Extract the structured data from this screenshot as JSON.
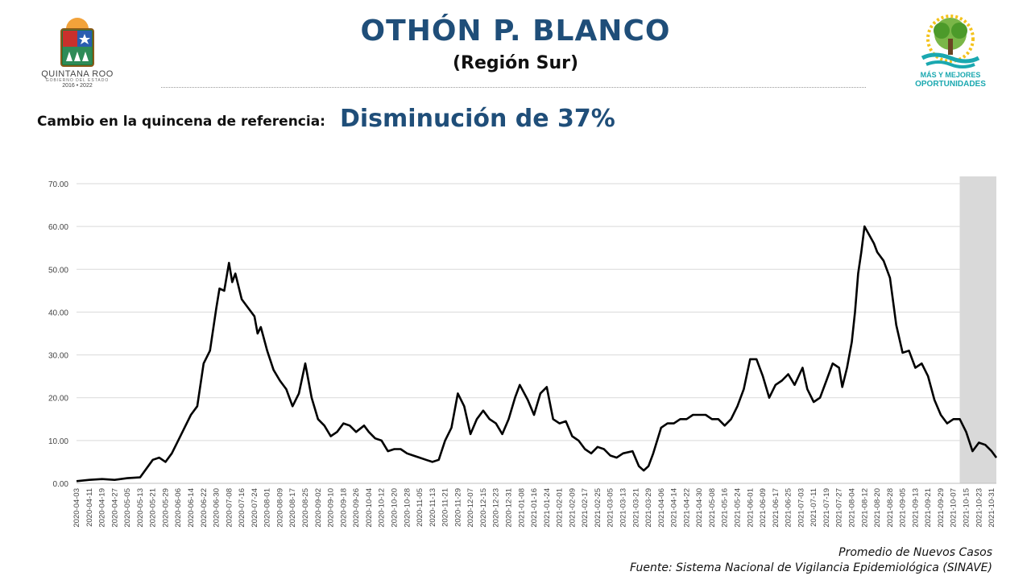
{
  "header": {
    "title": "OTHÓN P. BLANCO",
    "subtitle": "(Región Sur)"
  },
  "logos": {
    "left": {
      "name": "QUINTANA ROO",
      "sub": "GOBIERNO DEL ESTADO",
      "years": "2016 • 2022"
    },
    "right": {
      "line1": "MÁS Y MEJORES",
      "line2": "OPORTUNIDADES"
    }
  },
  "summary": {
    "label": "Cambio en la quincena de referencia:",
    "value": "Disminución de 37%"
  },
  "footer": {
    "series_label": "Promedio de Nuevos Casos",
    "source": "Fuente: Sistema Nacional de Vigilancia Epidemiológica (SINAVE)"
  },
  "colors": {
    "title": "#1f4e79",
    "line": "#000000",
    "shade": "#d9d9d9",
    "grid": "#d9d9d9",
    "logo_teal": "#1aa8b0"
  },
  "chart_data": {
    "type": "line",
    "title": "",
    "xlabel": "",
    "ylabel": "",
    "ylim": [
      0,
      70
    ],
    "yticks": [
      "0.00",
      "10.00",
      "20.00",
      "30.00",
      "40.00",
      "50.00",
      "60.00",
      "70.00"
    ],
    "grid": "horizontal",
    "shaded_period": [
      "2021-10-15",
      "2021-11-03"
    ],
    "x_tick_labels": [
      "2020-04-03",
      "2020-04-11",
      "2020-04-19",
      "2020-04-27",
      "2020-05-05",
      "2020-05-13",
      "2020-05-21",
      "2020-05-29",
      "2020-06-06",
      "2020-06-14",
      "2020-06-22",
      "2020-06-30",
      "2020-07-08",
      "2020-07-16",
      "2020-07-24",
      "2020-08-01",
      "2020-08-09",
      "2020-08-17",
      "2020-08-25",
      "2020-09-02",
      "2020-09-10",
      "2020-09-18",
      "2020-09-26",
      "2020-10-04",
      "2020-10-12",
      "2020-10-20",
      "2020-10-28",
      "2020-11-05",
      "2020-11-13",
      "2020-11-21",
      "2020-11-29",
      "2020-12-07",
      "2020-12-15",
      "2020-12-23",
      "2020-12-31",
      "2021-01-08",
      "2021-01-16",
      "2021-01-24",
      "2021-02-01",
      "2021-02-09",
      "2021-02-17",
      "2021-02-25",
      "2021-03-05",
      "2021-03-13",
      "2021-03-21",
      "2021-03-29",
      "2021-04-06",
      "2021-04-14",
      "2021-04-22",
      "2021-04-30",
      "2021-05-08",
      "2021-05-16",
      "2021-05-24",
      "2021-06-01",
      "2021-06-09",
      "2021-06-17",
      "2021-06-25",
      "2021-07-03",
      "2021-07-11",
      "2021-07-19",
      "2021-07-27",
      "2021-08-04",
      "2021-08-12",
      "2021-08-20",
      "2021-08-28",
      "2021-09-05",
      "2021-09-13",
      "2021-09-21",
      "2021-09-29",
      "2021-10-07",
      "2021-10-15",
      "2021-10-23",
      "2021-10-31"
    ],
    "series": [
      {
        "values": [
          {
            "x": "2020-04-03",
            "y": 0.5
          },
          {
            "x": "2020-04-11",
            "y": 0.8
          },
          {
            "x": "2020-04-19",
            "y": 1.0
          },
          {
            "x": "2020-04-27",
            "y": 0.8
          },
          {
            "x": "2020-05-05",
            "y": 1.2
          },
          {
            "x": "2020-05-13",
            "y": 1.4
          },
          {
            "x": "2020-05-21",
            "y": 5.5
          },
          {
            "x": "2020-05-25",
            "y": 6.0
          },
          {
            "x": "2020-05-29",
            "y": 5.0
          },
          {
            "x": "2020-06-02",
            "y": 7.0
          },
          {
            "x": "2020-06-06",
            "y": 10.0
          },
          {
            "x": "2020-06-10",
            "y": 13.0
          },
          {
            "x": "2020-06-14",
            "y": 16.0
          },
          {
            "x": "2020-06-18",
            "y": 18.0
          },
          {
            "x": "2020-06-22",
            "y": 28.0
          },
          {
            "x": "2020-06-26",
            "y": 31.0
          },
          {
            "x": "2020-06-30",
            "y": 41.0
          },
          {
            "x": "2020-07-02",
            "y": 45.5
          },
          {
            "x": "2020-07-05",
            "y": 45.0
          },
          {
            "x": "2020-07-08",
            "y": 51.5
          },
          {
            "x": "2020-07-10",
            "y": 47.0
          },
          {
            "x": "2020-07-12",
            "y": 49.0
          },
          {
            "x": "2020-07-16",
            "y": 43.0
          },
          {
            "x": "2020-07-20",
            "y": 41.0
          },
          {
            "x": "2020-07-24",
            "y": 39.0
          },
          {
            "x": "2020-07-26",
            "y": 35.0
          },
          {
            "x": "2020-07-28",
            "y": 36.5
          },
          {
            "x": "2020-08-01",
            "y": 31.0
          },
          {
            "x": "2020-08-05",
            "y": 26.5
          },
          {
            "x": "2020-08-09",
            "y": 24.0
          },
          {
            "x": "2020-08-13",
            "y": 22.0
          },
          {
            "x": "2020-08-17",
            "y": 18.0
          },
          {
            "x": "2020-08-21",
            "y": 21.0
          },
          {
            "x": "2020-08-25",
            "y": 28.0
          },
          {
            "x": "2020-08-29",
            "y": 20.0
          },
          {
            "x": "2020-09-02",
            "y": 15.0
          },
          {
            "x": "2020-09-06",
            "y": 13.5
          },
          {
            "x": "2020-09-10",
            "y": 11.0
          },
          {
            "x": "2020-09-14",
            "y": 12.0
          },
          {
            "x": "2020-09-18",
            "y": 14.0
          },
          {
            "x": "2020-09-22",
            "y": 13.5
          },
          {
            "x": "2020-09-26",
            "y": 12.0
          },
          {
            "x": "2020-10-01",
            "y": 13.5
          },
          {
            "x": "2020-10-04",
            "y": 12.0
          },
          {
            "x": "2020-10-08",
            "y": 10.5
          },
          {
            "x": "2020-10-12",
            "y": 10.0
          },
          {
            "x": "2020-10-16",
            "y": 7.5
          },
          {
            "x": "2020-10-20",
            "y": 8.0
          },
          {
            "x": "2020-10-24",
            "y": 8.0
          },
          {
            "x": "2020-10-28",
            "y": 7.0
          },
          {
            "x": "2020-11-01",
            "y": 6.5
          },
          {
            "x": "2020-11-05",
            "y": 6.0
          },
          {
            "x": "2020-11-09",
            "y": 5.5
          },
          {
            "x": "2020-11-13",
            "y": 5.0
          },
          {
            "x": "2020-11-17",
            "y": 5.5
          },
          {
            "x": "2020-11-21",
            "y": 10.0
          },
          {
            "x": "2020-11-25",
            "y": 13.0
          },
          {
            "x": "2020-11-29",
            "y": 21.0
          },
          {
            "x": "2020-12-03",
            "y": 18.0
          },
          {
            "x": "2020-12-07",
            "y": 11.5
          },
          {
            "x": "2020-12-11",
            "y": 15.0
          },
          {
            "x": "2020-12-15",
            "y": 17.0
          },
          {
            "x": "2020-12-19",
            "y": 15.0
          },
          {
            "x": "2020-12-23",
            "y": 14.0
          },
          {
            "x": "2020-12-27",
            "y": 11.5
          },
          {
            "x": "2020-12-31",
            "y": 15.0
          },
          {
            "x": "2021-01-04",
            "y": 20.0
          },
          {
            "x": "2021-01-07",
            "y": 23.0
          },
          {
            "x": "2021-01-12",
            "y": 19.5
          },
          {
            "x": "2021-01-16",
            "y": 16.0
          },
          {
            "x": "2021-01-20",
            "y": 21.0
          },
          {
            "x": "2021-01-24",
            "y": 22.5
          },
          {
            "x": "2021-01-28",
            "y": 15.0
          },
          {
            "x": "2021-02-01",
            "y": 14.0
          },
          {
            "x": "2021-02-05",
            "y": 14.5
          },
          {
            "x": "2021-02-09",
            "y": 11.0
          },
          {
            "x": "2021-02-13",
            "y": 10.0
          },
          {
            "x": "2021-02-17",
            "y": 8.0
          },
          {
            "x": "2021-02-21",
            "y": 7.0
          },
          {
            "x": "2021-02-25",
            "y": 8.5
          },
          {
            "x": "2021-03-01",
            "y": 8.0
          },
          {
            "x": "2021-03-05",
            "y": 6.5
          },
          {
            "x": "2021-03-09",
            "y": 6.0
          },
          {
            "x": "2021-03-13",
            "y": 7.0
          },
          {
            "x": "2021-03-19",
            "y": 7.5
          },
          {
            "x": "2021-03-23",
            "y": 4.0
          },
          {
            "x": "2021-03-26",
            "y": 3.0
          },
          {
            "x": "2021-03-29",
            "y": 4.0
          },
          {
            "x": "2021-04-01",
            "y": 7.0
          },
          {
            "x": "2021-04-06",
            "y": 13.0
          },
          {
            "x": "2021-04-10",
            "y": 14.0
          },
          {
            "x": "2021-04-14",
            "y": 14.0
          },
          {
            "x": "2021-04-18",
            "y": 15.0
          },
          {
            "x": "2021-04-22",
            "y": 15.0
          },
          {
            "x": "2021-04-26",
            "y": 16.0
          },
          {
            "x": "2021-04-30",
            "y": 16.0
          },
          {
            "x": "2021-05-04",
            "y": 16.0
          },
          {
            "x": "2021-05-08",
            "y": 15.0
          },
          {
            "x": "2021-05-12",
            "y": 15.0
          },
          {
            "x": "2021-05-16",
            "y": 13.5
          },
          {
            "x": "2021-05-20",
            "y": 15.0
          },
          {
            "x": "2021-05-24",
            "y": 18.0
          },
          {
            "x": "2021-05-28",
            "y": 22.0
          },
          {
            "x": "2021-06-01",
            "y": 29.0
          },
          {
            "x": "2021-06-05",
            "y": 29.0
          },
          {
            "x": "2021-06-09",
            "y": 25.0
          },
          {
            "x": "2021-06-13",
            "y": 20.0
          },
          {
            "x": "2021-06-17",
            "y": 23.0
          },
          {
            "x": "2021-06-21",
            "y": 24.0
          },
          {
            "x": "2021-06-25",
            "y": 25.5
          },
          {
            "x": "2021-06-29",
            "y": 23.0
          },
          {
            "x": "2021-07-04",
            "y": 27.0
          },
          {
            "x": "2021-07-07",
            "y": 22.0
          },
          {
            "x": "2021-07-11",
            "y": 19.0
          },
          {
            "x": "2021-07-15",
            "y": 20.0
          },
          {
            "x": "2021-07-19",
            "y": 24.0
          },
          {
            "x": "2021-07-23",
            "y": 28.0
          },
          {
            "x": "2021-07-27",
            "y": 27.0
          },
          {
            "x": "2021-07-29",
            "y": 22.5
          },
          {
            "x": "2021-08-01",
            "y": 27.0
          },
          {
            "x": "2021-08-04",
            "y": 33.0
          },
          {
            "x": "2021-08-06",
            "y": 40.0
          },
          {
            "x": "2021-08-08",
            "y": 49.0
          },
          {
            "x": "2021-08-10",
            "y": 54.0
          },
          {
            "x": "2021-08-12",
            "y": 60.0
          },
          {
            "x": "2021-08-15",
            "y": 58.0
          },
          {
            "x": "2021-08-18",
            "y": 56.0
          },
          {
            "x": "2021-08-20",
            "y": 54.0
          },
          {
            "x": "2021-08-24",
            "y": 52.0
          },
          {
            "x": "2021-08-28",
            "y": 48.0
          },
          {
            "x": "2021-09-01",
            "y": 37.0
          },
          {
            "x": "2021-09-05",
            "y": 30.5
          },
          {
            "x": "2021-09-09",
            "y": 31.0
          },
          {
            "x": "2021-09-13",
            "y": 27.0
          },
          {
            "x": "2021-09-17",
            "y": 28.0
          },
          {
            "x": "2021-09-21",
            "y": 25.0
          },
          {
            "x": "2021-09-25",
            "y": 19.5
          },
          {
            "x": "2021-09-29",
            "y": 16.0
          },
          {
            "x": "2021-10-03",
            "y": 14.0
          },
          {
            "x": "2021-10-07",
            "y": 15.0
          },
          {
            "x": "2021-10-11",
            "y": 15.0
          },
          {
            "x": "2021-10-15",
            "y": 12.0
          },
          {
            "x": "2021-10-19",
            "y": 7.5
          },
          {
            "x": "2021-10-23",
            "y": 9.5
          },
          {
            "x": "2021-10-27",
            "y": 9.0
          },
          {
            "x": "2021-10-31",
            "y": 7.5
          },
          {
            "x": "2021-11-03",
            "y": 6.0
          }
        ]
      }
    ]
  }
}
